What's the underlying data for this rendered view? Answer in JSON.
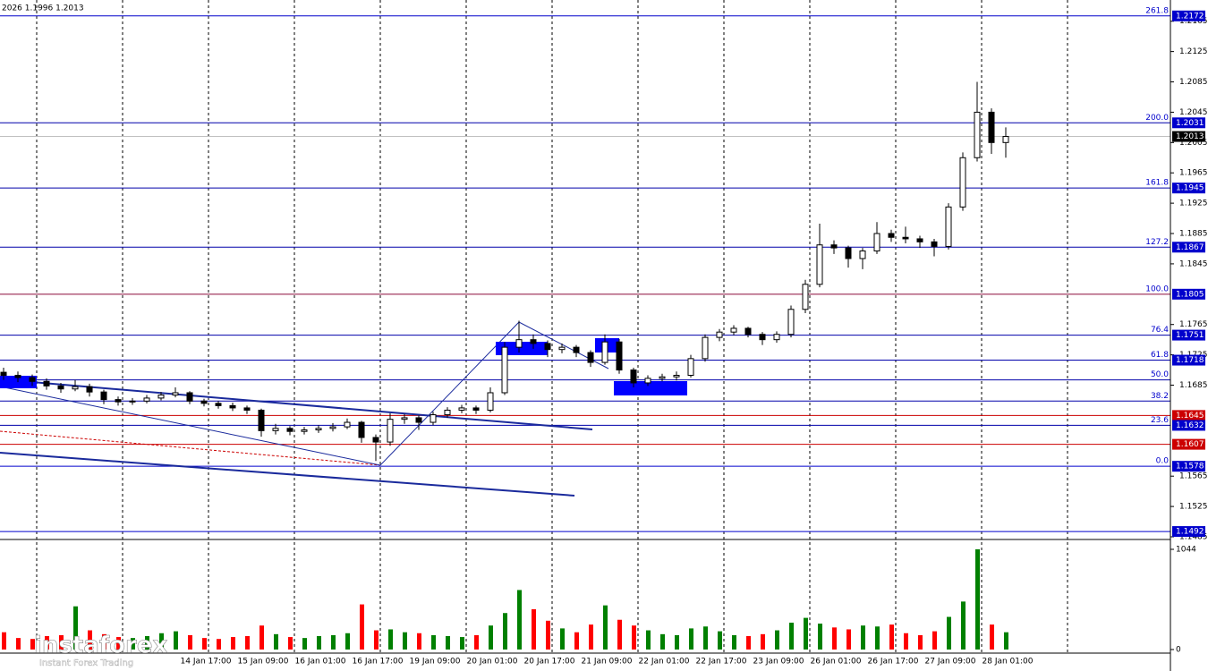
{
  "chart_data": {
    "type": "candlestick",
    "header": "2026 1.1996 1.2013",
    "watermark": "instaforex",
    "watermark_sub": "Instant Forex Trading",
    "ylim": [
      1.1485,
      1.2193
    ],
    "yticks": [
      1.2165,
      1.2125,
      1.2085,
      1.2045,
      1.2005,
      1.1965,
      1.1925,
      1.1885,
      1.1845,
      1.1765,
      1.1725,
      1.1685,
      1.1565,
      1.1525,
      1.1485
    ],
    "x_labels": [
      "14 Jan 17:00",
      "15 Jan 09:00",
      "16 Jan 01:00",
      "16 Jan 17:00",
      "19 Jan 09:00",
      "20 Jan 01:00",
      "20 Jan 17:00",
      "21 Jan 09:00",
      "22 Jan 01:00",
      "22 Jan 17:00",
      "23 Jan 09:00",
      "26 Jan 01:00",
      "26 Jan 17:00",
      "27 Jan 09:00",
      "28 Jan 01:00"
    ],
    "levels": [
      {
        "price": 1.2172,
        "fib": "261.8",
        "color": "#0000cc",
        "box_color": "#0000cc",
        "box": true
      },
      {
        "price": 1.2031,
        "fib": "200.0",
        "color": "#0000aa",
        "box_color": "#0000cc",
        "box": true
      },
      {
        "price": 1.1945,
        "fib": "161.8",
        "color": "#0000aa",
        "box_color": "#0000cc",
        "box": true
      },
      {
        "price": 1.1867,
        "fib": "127.2",
        "color": "#0000aa",
        "box_color": "#0000cc",
        "box": true
      },
      {
        "price": 1.1805,
        "fib": "100.0",
        "color": "#8b0a3a",
        "box_color": "#0000cc",
        "box": true
      },
      {
        "price": 1.1751,
        "fib": "76.4",
        "color": "#0000aa",
        "box_color": "#0000cc",
        "box": true
      },
      {
        "price": 1.1718,
        "fib": "61.8",
        "color": "#0000aa",
        "box_color": "#0000cc",
        "box": true
      },
      {
        "price": 1.1692,
        "fib": "50.0",
        "color": "#0000aa",
        "box_color": "#0000cc",
        "box": false
      },
      {
        "price": 1.1664,
        "fib": "38.2",
        "color": "#0000aa",
        "box_color": "#0000cc",
        "box": false
      },
      {
        "price": 1.1645,
        "color": "#cc0000",
        "box_color": "#cc0000",
        "box": true
      },
      {
        "price": 1.1632,
        "fib": "23.6",
        "color": "#0000aa",
        "box_color": "#0000cc",
        "box": true
      },
      {
        "price": 1.1607,
        "color": "#cc0000",
        "box_color": "#cc0000",
        "box": true
      },
      {
        "price": 1.1578,
        "fib": "0.0",
        "color": "#0000cc",
        "box_color": "#0000cc",
        "box": true
      },
      {
        "price": 1.1492,
        "color": "#0000cc",
        "box_color": "#0000cc",
        "box": true
      }
    ],
    "current_price": 1.2013,
    "ohlc": [
      [
        1.1702,
        1.1708,
        1.1692,
        1.1698
      ],
      [
        1.1698,
        1.1703,
        1.1689,
        1.1695
      ],
      [
        1.1695,
        1.1699,
        1.1684,
        1.169
      ],
      [
        1.169,
        1.1694,
        1.1679,
        1.1684
      ],
      [
        1.1684,
        1.1688,
        1.1675,
        1.168
      ],
      [
        1.168,
        1.1692,
        1.1677,
        1.1683
      ],
      [
        1.1683,
        1.1687,
        1.167,
        1.1676
      ],
      [
        1.1676,
        1.1679,
        1.166,
        1.1666
      ],
      [
        1.1666,
        1.167,
        1.1658,
        1.1663
      ],
      [
        1.1663,
        1.1668,
        1.1659,
        1.1664
      ],
      [
        1.1664,
        1.1672,
        1.1661,
        1.1668
      ],
      [
        1.1668,
        1.1676,
        1.1665,
        1.1672
      ],
      [
        1.1672,
        1.1682,
        1.1669,
        1.1675
      ],
      [
        1.1675,
        1.1677,
        1.166,
        1.1664
      ],
      [
        1.1664,
        1.1667,
        1.1657,
        1.1661
      ],
      [
        1.1661,
        1.1664,
        1.1654,
        1.1658
      ],
      [
        1.1658,
        1.1662,
        1.1651,
        1.1655
      ],
      [
        1.1655,
        1.1658,
        1.1647,
        1.1652
      ],
      [
        1.1652,
        1.1654,
        1.1617,
        1.1625
      ],
      [
        1.1625,
        1.1634,
        1.162,
        1.1628
      ],
      [
        1.1628,
        1.1631,
        1.1619,
        1.1624
      ],
      [
        1.1624,
        1.163,
        1.162,
        1.1626
      ],
      [
        1.1626,
        1.1632,
        1.1622,
        1.1628
      ],
      [
        1.1628,
        1.1635,
        1.1624,
        1.163
      ],
      [
        1.163,
        1.1641,
        1.1627,
        1.1636
      ],
      [
        1.1636,
        1.1638,
        1.1609,
        1.1616
      ],
      [
        1.1616,
        1.162,
        1.1585,
        1.161
      ],
      [
        1.161,
        1.1648,
        1.1605,
        1.164
      ],
      [
        1.164,
        1.1647,
        1.1634,
        1.1642
      ],
      [
        1.1642,
        1.1645,
        1.1626,
        1.1636
      ],
      [
        1.1636,
        1.165,
        1.1632,
        1.1646
      ],
      [
        1.1646,
        1.1656,
        1.1642,
        1.1652
      ],
      [
        1.1652,
        1.1659,
        1.1648,
        1.1655
      ],
      [
        1.1655,
        1.1658,
        1.1647,
        1.1652
      ],
      [
        1.1652,
        1.1682,
        1.1649,
        1.1675
      ],
      [
        1.1675,
        1.1742,
        1.1672,
        1.1735
      ],
      [
        1.1735,
        1.177,
        1.1728,
        1.1745
      ],
      [
        1.1745,
        1.1752,
        1.1733,
        1.174
      ],
      [
        1.174,
        1.1744,
        1.1722,
        1.1732
      ],
      [
        1.1732,
        1.174,
        1.1727,
        1.1735
      ],
      [
        1.1735,
        1.1738,
        1.1722,
        1.1728
      ],
      [
        1.1728,
        1.1731,
        1.1709,
        1.1715
      ],
      [
        1.1715,
        1.1752,
        1.1712,
        1.1742
      ],
      [
        1.1742,
        1.1746,
        1.17,
        1.1705
      ],
      [
        1.1705,
        1.1708,
        1.1682,
        1.1688
      ],
      [
        1.1688,
        1.1698,
        1.1684,
        1.1694
      ],
      [
        1.1694,
        1.17,
        1.169,
        1.1696
      ],
      [
        1.1696,
        1.1703,
        1.1691,
        1.1698
      ],
      [
        1.1698,
        1.1725,
        1.1695,
        1.172
      ],
      [
        1.172,
        1.1752,
        1.1716,
        1.1748
      ],
      [
        1.1748,
        1.1759,
        1.1743,
        1.1755
      ],
      [
        1.1755,
        1.1764,
        1.1751,
        1.176
      ],
      [
        1.176,
        1.1762,
        1.1748,
        1.1752
      ],
      [
        1.1752,
        1.1755,
        1.1738,
        1.1745
      ],
      [
        1.1745,
        1.1756,
        1.1741,
        1.1752
      ],
      [
        1.1752,
        1.179,
        1.1748,
        1.1785
      ],
      [
        1.1785,
        1.1824,
        1.178,
        1.1818
      ],
      [
        1.1818,
        1.1898,
        1.1814,
        1.187
      ],
      [
        1.187,
        1.1876,
        1.1858,
        1.1866
      ],
      [
        1.1866,
        1.1869,
        1.184,
        1.1852
      ],
      [
        1.1852,
        1.1866,
        1.1838,
        1.1862
      ],
      [
        1.1862,
        1.19,
        1.1858,
        1.1885
      ],
      [
        1.1885,
        1.189,
        1.1874,
        1.188
      ],
      [
        1.188,
        1.1894,
        1.1872,
        1.1878
      ],
      [
        1.1878,
        1.1882,
        1.1866,
        1.1874
      ],
      [
        1.1874,
        1.1878,
        1.1855,
        1.1868
      ],
      [
        1.1868,
        1.1925,
        1.1864,
        1.192
      ],
      [
        1.192,
        1.1992,
        1.1915,
        1.1985
      ],
      [
        1.1985,
        1.2085,
        1.198,
        1.2045
      ],
      [
        1.2045,
        1.205,
        1.199,
        1.2005
      ],
      [
        1.2005,
        1.2025,
        1.1985,
        1.2013
      ]
    ],
    "volume": [
      180,
      120,
      110,
      140,
      150,
      450,
      200,
      160,
      130,
      120,
      140,
      170,
      190,
      150,
      120,
      110,
      130,
      140,
      250,
      160,
      130,
      120,
      140,
      150,
      170,
      470,
      200,
      210,
      180,
      170,
      150,
      140,
      130,
      150,
      250,
      380,
      620,
      420,
      300,
      220,
      180,
      260,
      460,
      310,
      250,
      200,
      160,
      150,
      220,
      240,
      190,
      150,
      140,
      160,
      200,
      280,
      330,
      270,
      230,
      210,
      250,
      240,
      260,
      170,
      150,
      190,
      340,
      500,
      1044,
      260,
      180
    ],
    "vlim": [
      0,
      1044
    ],
    "vticks": [
      1044,
      0
    ],
    "up_color": "#008000",
    "down_color": "#ff0000"
  }
}
